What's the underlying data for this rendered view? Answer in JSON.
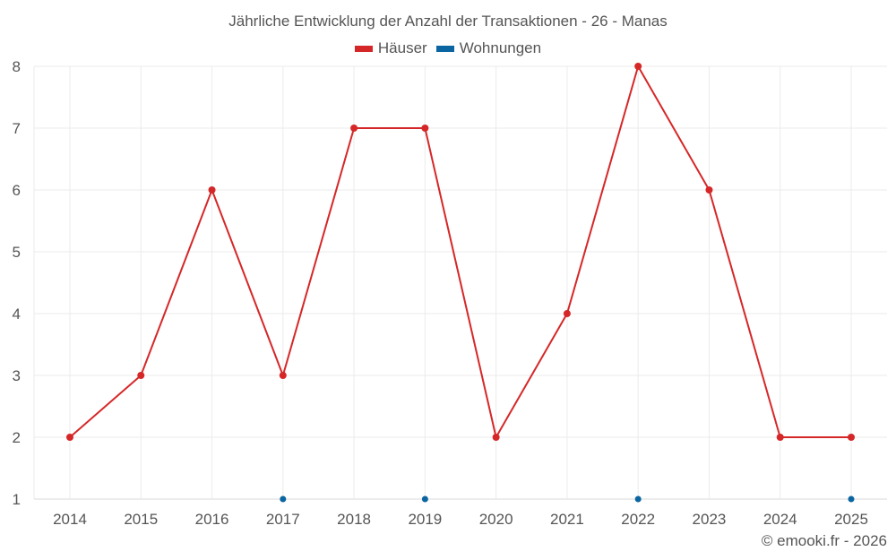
{
  "chart_data": {
    "type": "line",
    "title": "Jährliche Entwicklung der Anzahl der Transaktionen - 26 - Manas",
    "categories": [
      "2014",
      "2015",
      "2016",
      "2017",
      "2018",
      "2019",
      "2020",
      "2021",
      "2022",
      "2023",
      "2024",
      "2025"
    ],
    "series": [
      {
        "name": "Häuser",
        "color": "#d62728",
        "values": [
          2,
          3,
          6,
          3,
          7,
          7,
          2,
          4,
          8,
          6,
          2,
          2
        ],
        "line": true
      },
      {
        "name": "Wohnungen",
        "color": "#0b65a0",
        "values": [
          null,
          null,
          null,
          1,
          null,
          1,
          null,
          null,
          1,
          null,
          null,
          1
        ],
        "line": false
      }
    ],
    "yticks": [
      1,
      2,
      3,
      4,
      5,
      6,
      7,
      8
    ],
    "ylim": [
      1,
      8
    ],
    "xlabel": "",
    "ylabel": "",
    "grid": true,
    "legend_position": "top"
  },
  "title": "Jährliche Entwicklung der Anzahl der Transaktionen - 26 - Manas",
  "legend": [
    {
      "label": "Häuser",
      "color": "#d62728"
    },
    {
      "label": "Wohnungen",
      "color": "#0b65a0"
    }
  ],
  "credit": "© emooki.fr - 2026"
}
